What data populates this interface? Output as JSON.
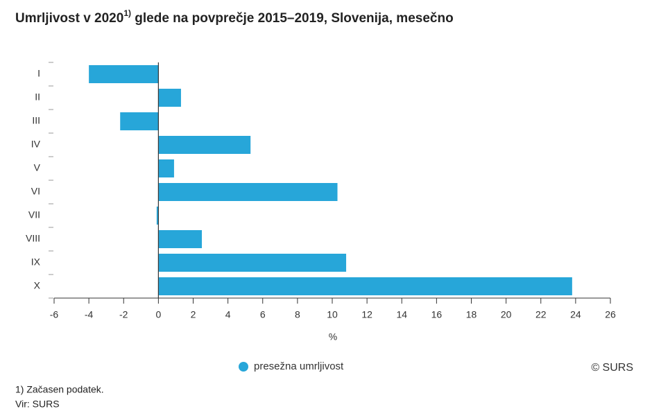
{
  "chart_data": {
    "type": "barh",
    "title": "Umrljivost v 2020",
    "title_note": "1)",
    "title_rest": "glede na povprečje 2015–2019, Slovenija, mesečno",
    "categories": [
      "I",
      "II",
      "III",
      "IV",
      "V",
      "VI",
      "VII",
      "VIII",
      "IX",
      "X"
    ],
    "series": [
      {
        "name": "presežna umrljivost",
        "color": "#27a6d9",
        "values": [
          -4.0,
          1.3,
          -2.2,
          5.3,
          0.9,
          10.3,
          -0.1,
          2.5,
          10.8,
          23.8
        ]
      }
    ],
    "xlabel": "%",
    "xlim": [
      -6,
      26
    ],
    "xticks": [
      -6,
      -4,
      -2,
      0,
      2,
      4,
      6,
      8,
      10,
      12,
      14,
      16,
      18,
      20,
      22,
      24,
      26
    ],
    "credit": "© SURS",
    "footnotes": [
      "1) Začasen podatek.",
      "Vir: SURS"
    ]
  }
}
